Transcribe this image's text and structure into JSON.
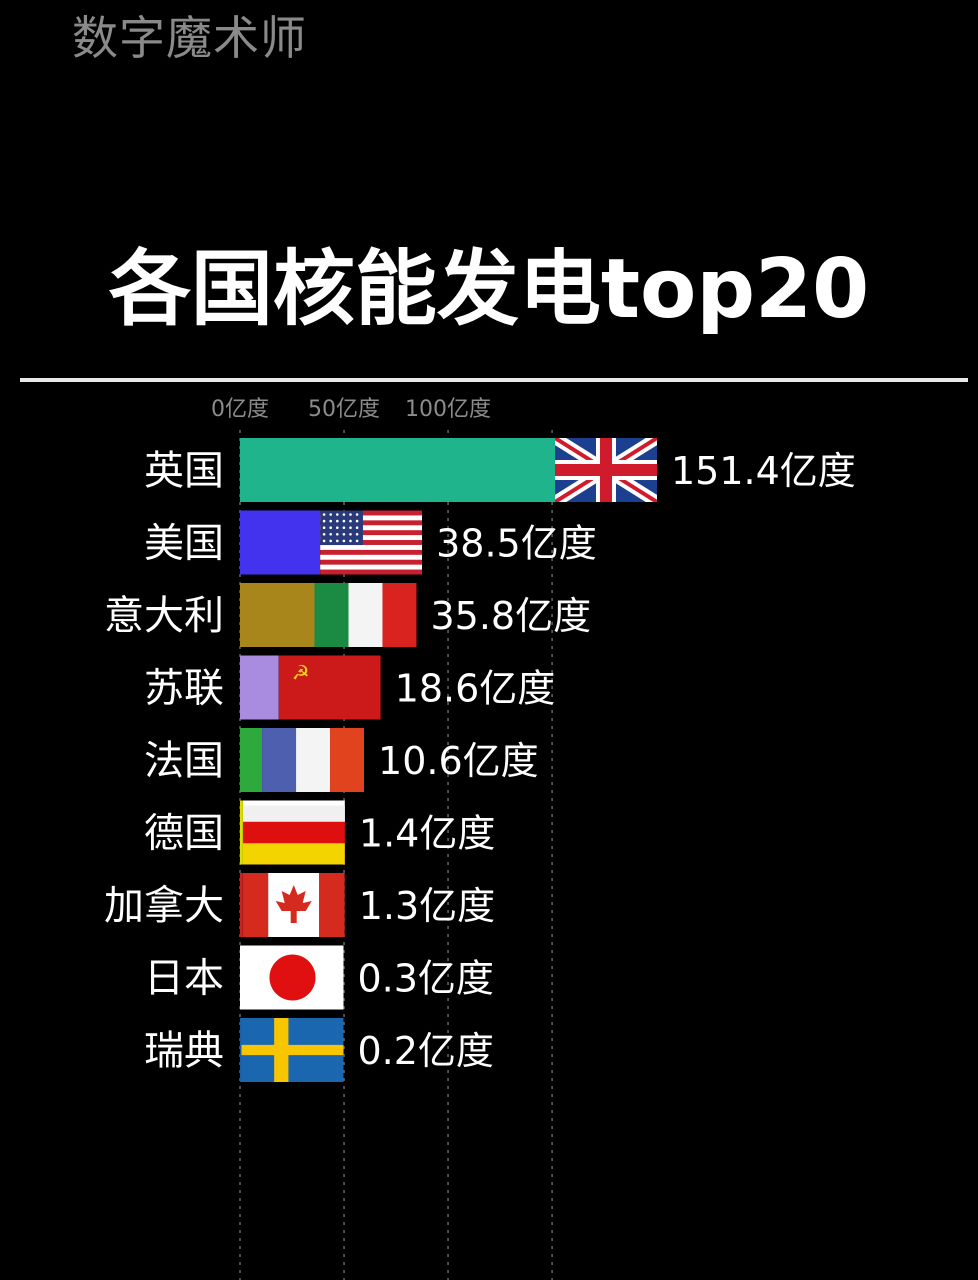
{
  "watermark": "数字魔术师",
  "colors": {
    "background": "#000000",
    "uk_bar": "#1fb48c",
    "us_bar": "#4433ee",
    "italy_bar": "#a8861b",
    "ussr_bar": "#a98be0",
    "france_bar": "#2eaa3c",
    "grid": "#666666"
  },
  "chart_data": {
    "type": "bar",
    "orientation": "horizontal",
    "title": "各国核能发电top20",
    "unit": "亿度",
    "xlim": [
      0,
      151.4
    ],
    "x_ticks": [
      {
        "value": 0,
        "label": "0亿度"
      },
      {
        "value": 50,
        "label": "50亿度"
      },
      {
        "value": 100,
        "label": "100亿度"
      }
    ],
    "categories": [
      "英国",
      "美国",
      "意大利",
      "苏联",
      "法国",
      "德国",
      "加拿大",
      "日本",
      "瑞典"
    ],
    "values": [
      151.4,
      38.5,
      35.8,
      18.6,
      10.6,
      1.4,
      1.3,
      0.3,
      0.2
    ],
    "value_labels": [
      "151.4亿度",
      "38.5亿度",
      "35.8亿度",
      "18.6亿度",
      "10.6亿度",
      "1.4亿度",
      "1.3亿度",
      "0.3亿度",
      "0.2亿度"
    ],
    "flags": [
      "uk-flag",
      "us-flag",
      "italy-flag",
      "ussr-flag",
      "france-flag",
      "germany-flag",
      "canada-flag",
      "japan-flag",
      "sweden-flag"
    ],
    "bar_colors": [
      "#1fb48c",
      "#4433ee",
      "#a8861b",
      "#a98be0",
      "#2eaa3c",
      "#dddd00",
      "#cc2222",
      "#ffffff",
      "#1c5fa8"
    ],
    "grid": true,
    "legend": "none"
  }
}
